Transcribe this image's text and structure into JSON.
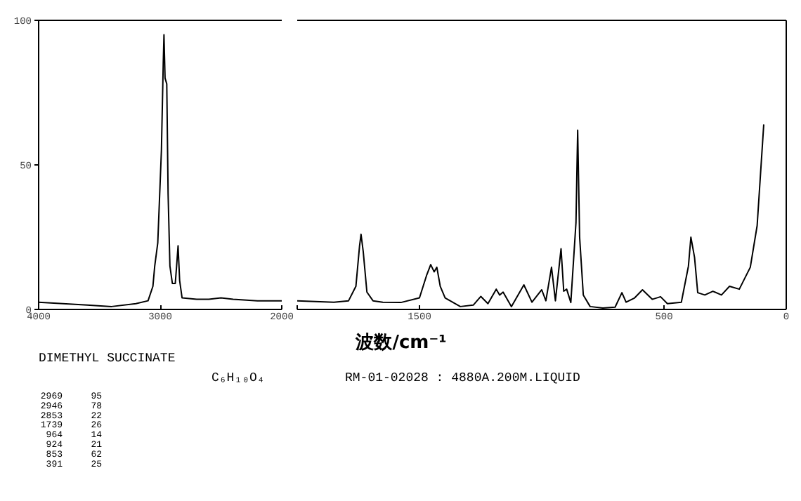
{
  "chart_data": [
    {
      "type": "line",
      "x": [
        4000,
        3800,
        3600,
        3400,
        3200,
        3100,
        3060,
        3045,
        3020,
        2990,
        2975,
        2969,
        2960,
        2946,
        2935,
        2920,
        2900,
        2876,
        2865,
        2853,
        2840,
        2820,
        2700,
        2600,
        2500,
        2400,
        2200,
        2000
      ],
      "series": [
        {
          "color": "#000000",
          "values": [
            2.5,
            2,
            1.5,
            1,
            2,
            3,
            8,
            15,
            23,
            55,
            85,
            95,
            80,
            78,
            40,
            15,
            9,
            9,
            15,
            22,
            10,
            4,
            3.5,
            3.5,
            4,
            3.5,
            3,
            3
          ]
        }
      ],
      "xlim": [
        4000,
        2000
      ],
      "xticks": [
        4000,
        3000,
        2000
      ],
      "ylim": [
        0,
        100
      ],
      "yticks": [
        0,
        50,
        100
      ],
      "grid": false,
      "line_style": "solid"
    },
    {
      "type": "line",
      "xlabel": "波数/cm⁻¹",
      "x": [
        2000,
        1850,
        1790,
        1760,
        1745,
        1739,
        1730,
        1715,
        1690,
        1650,
        1576,
        1500,
        1470,
        1454,
        1440,
        1429,
        1415,
        1395,
        1333,
        1280,
        1249,
        1220,
        1186,
        1172,
        1158,
        1124,
        1073,
        1040,
        1000,
        983,
        960,
        944,
        921,
        910,
        898,
        881,
        860,
        853,
        845,
        830,
        802,
        750,
        700,
        672,
        655,
        620,
        588,
        548,
        514,
        486,
        429,
        400,
        390,
        375,
        362,
        333,
        300,
        265,
        232,
        192,
        147,
        119,
        92
      ],
      "series": [
        {
          "color": "#000000",
          "values": [
            3,
            2.5,
            3,
            8,
            22,
            26,
            20,
            6,
            3,
            2.5,
            2.4,
            4,
            12,
            15.5,
            13,
            14.6,
            8,
            4,
            1,
            1.5,
            4.5,
            2,
            7,
            5,
            6,
            1,
            8.5,
            2.5,
            6.8,
            3,
            14.6,
            3,
            21,
            6.3,
            7,
            2.4,
            30,
            62,
            25,
            5,
            1,
            0.5,
            0.8,
            5.8,
            2.5,
            4,
            6.8,
            3.5,
            4.4,
            2,
            2.5,
            15,
            25,
            18,
            5.8,
            5,
            6.3,
            5,
            8,
            7,
            14.6,
            29,
            64
          ]
        }
      ],
      "xlim": [
        2000,
        0
      ],
      "xticks": [
        {
          "value": 2000,
          "label": null
        },
        1500,
        500,
        0
      ],
      "ylim": [
        0,
        100
      ],
      "yticks": [
        0,
        50,
        100
      ],
      "tick_labels": "x",
      "grid": false,
      "line_style": "solid",
      "annotations": [
        "DIMETHYL SUCCINATE",
        "C₆H₁₀O₄",
        "RM-01-02028 : 4880A.200M.LIQUID",
        "2969 95",
        "2946 78",
        "2853 22",
        "1739 26",
        "964 14",
        "924 21",
        "853 62",
        "391 25"
      ]
    }
  ]
}
